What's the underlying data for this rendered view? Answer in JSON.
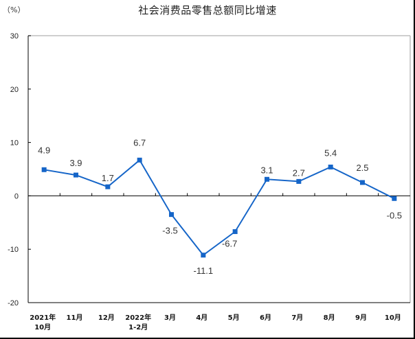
{
  "chart_data": {
    "type": "line",
    "title": "社会消费品零售总额同比增速",
    "unit_label": "（%）",
    "xlabel": "",
    "ylabel": "%",
    "ylim": [
      -20,
      30
    ],
    "yticks": [
      30,
      20,
      10,
      0,
      -10,
      -20
    ],
    "grid": false,
    "legend": null,
    "categories": [
      "2021年\n10月",
      "11月",
      "12月",
      "2022年\n1-2月",
      "3月",
      "4月",
      "5月",
      "6月",
      "7月",
      "8月",
      "9月",
      "10月"
    ],
    "category_lines": [
      [
        "2021年",
        "10月"
      ],
      [
        "11月"
      ],
      [
        "12月"
      ],
      [
        "2022年",
        "1-2月"
      ],
      [
        "3月"
      ],
      [
        "4月"
      ],
      [
        "5月"
      ],
      [
        "6月"
      ],
      [
        "7月"
      ],
      [
        "8月"
      ],
      [
        "9月"
      ],
      [
        "10月"
      ]
    ],
    "series": [
      {
        "name": "社会消费品零售总额同比增速",
        "color": "#1565C8",
        "values": [
          4.9,
          3.9,
          1.7,
          6.7,
          -3.5,
          -11.1,
          -6.7,
          3.1,
          2.7,
          5.4,
          2.5,
          -0.5
        ],
        "labels": [
          "4.9",
          "3.9",
          "1.7",
          "6.7",
          "-3.5",
          "-11.1",
          "-6.7",
          "3.1",
          "2.7",
          "5.4",
          "2.5",
          "-0.5"
        ]
      }
    ]
  },
  "colors": {
    "line": "#1565C8",
    "axis": "#000000",
    "frame": "#bdbdbd",
    "text": "#333333"
  }
}
